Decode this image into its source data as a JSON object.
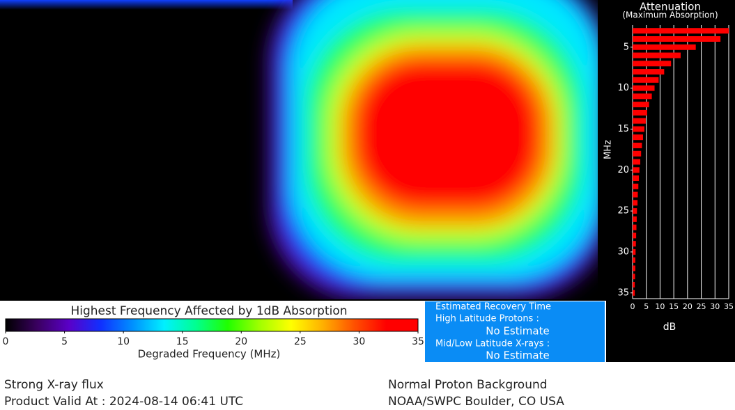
{
  "chart_data": [
    {
      "type": "colorbar",
      "title": "Highest Frequency Affected by 1dB Absorption",
      "xlabel": "Degraded Frequency (MHz)",
      "xlim": [
        0,
        35
      ],
      "xticks": [
        0,
        5,
        10,
        15,
        20,
        25,
        30,
        35
      ],
      "colormap": [
        "#000000",
        "#3a0060",
        "#5a00c8",
        "#1030ff",
        "#0090ff",
        "#00f0ff",
        "#00ff90",
        "#20ff00",
        "#a0ff00",
        "#ffff00",
        "#ffb000",
        "#ff5000",
        "#ff0000",
        "#ff0000"
      ]
    },
    {
      "type": "barh",
      "title": "Attenuation",
      "subtitle": "(Maximum Absorption)",
      "ylabel": "MHz",
      "xlabel": "dB",
      "color": "#ff0000",
      "grid": true,
      "y": [
        3,
        4,
        5,
        6,
        7,
        8,
        9,
        10,
        11,
        12,
        13,
        14,
        15,
        16,
        17,
        18,
        19,
        20,
        21,
        22,
        23,
        24,
        25,
        26,
        27,
        28,
        29,
        30,
        31,
        32,
        33,
        34,
        35
      ],
      "values": [
        35,
        32,
        23,
        17.5,
        14,
        11.5,
        9.5,
        8,
        7,
        6,
        5.3,
        4.8,
        4.3,
        3.8,
        3.4,
        3.1,
        2.8,
        2.5,
        2.3,
        2.1,
        1.9,
        1.8,
        1.6,
        1.5,
        1.4,
        1.3,
        1.2,
        1.1,
        1.0,
        1.0,
        0.9,
        0.8,
        0.8
      ],
      "xlim": [
        0,
        35
      ],
      "xticks": [
        0,
        5,
        10,
        15,
        20,
        25,
        30,
        35
      ],
      "ylim": [
        2.3,
        35.7
      ],
      "yticks": [
        5,
        10,
        15,
        20,
        25,
        30,
        35
      ]
    }
  ],
  "recovery": {
    "title": "Estimated Recovery Time",
    "high_label": "High Latitude Protons :",
    "high_value": "No Estimate",
    "mid_label": "Mid/Low Latitude X-rays :",
    "mid_value": "No Estimate"
  },
  "footer": {
    "left": [
      "Strong X-ray flux",
      "Product Valid At : 2024-08-14 06:41 UTC"
    ],
    "right": [
      "Normal Proton Background",
      "NOAA/SWPC Boulder, CO USA"
    ]
  }
}
